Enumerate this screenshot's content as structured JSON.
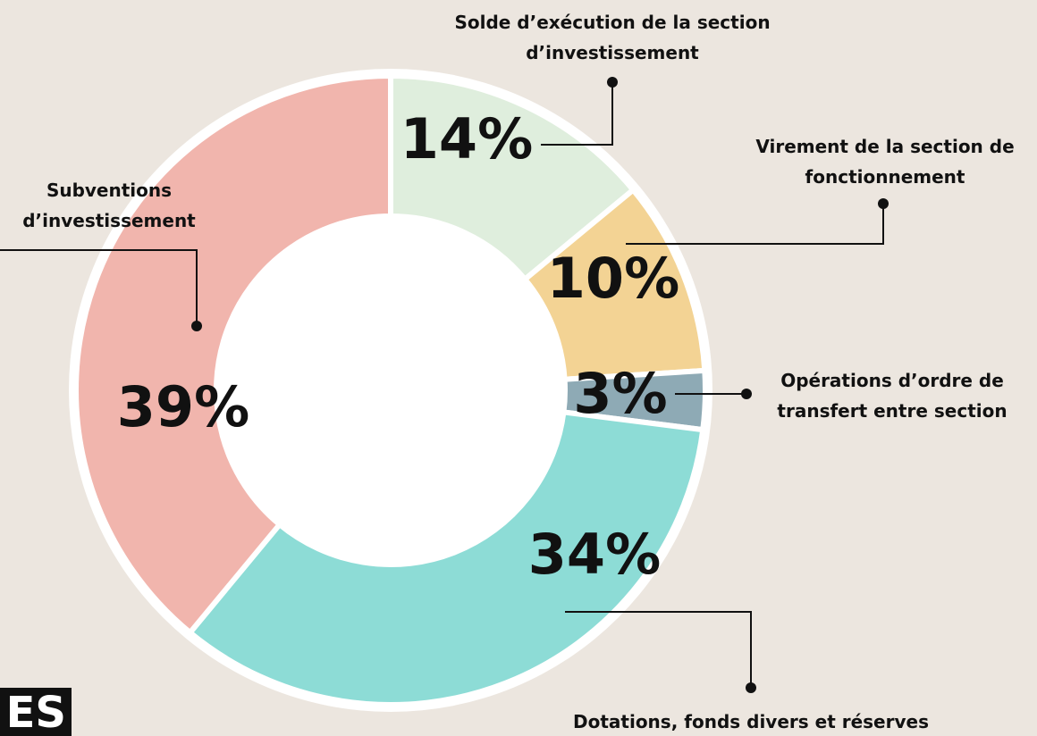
{
  "chart_data": {
    "type": "donut",
    "categories": [
      "Solde d’exécution de la section d’investissement",
      "Virement de la section de fonctionnement",
      "Opérations d’ordre de transfert entre section",
      "Dotations, fonds divers et réserves",
      "Subventions d’investissement"
    ],
    "values": [
      14,
      10,
      3,
      34,
      39
    ],
    "value_labels": [
      "14%",
      "10%",
      "3%",
      "34%",
      "39%"
    ],
    "colors": [
      "#dfeedd",
      "#f3d394",
      "#8eaab5",
      "#8ddcd6",
      "#f1b5ad"
    ]
  },
  "logo": "ES"
}
